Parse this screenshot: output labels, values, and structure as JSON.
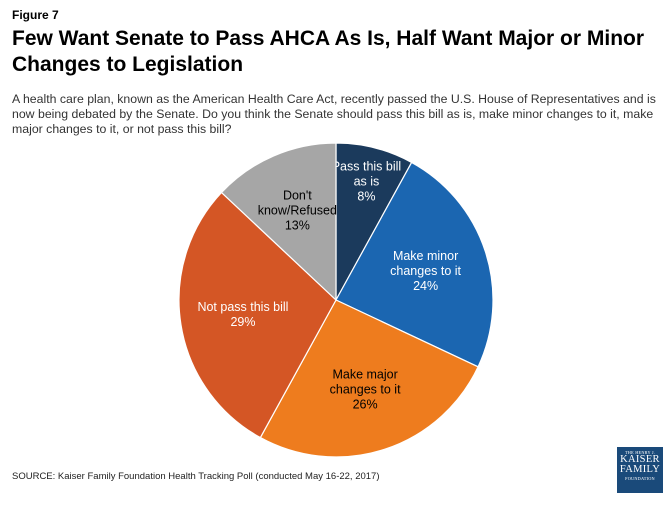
{
  "figure_label": "Figure 7",
  "title": "Few Want Senate to Pass AHCA As Is, Half Want Major or Minor Changes to Legislation",
  "question": "A health care plan, known as the American Health Care Act, recently passed the U.S. House of Representatives and is now being debated by the Senate. Do you think the Senate should pass this bill as is, make minor changes to it, make major changes to it, or not pass this bill?",
  "source": "SOURCE: Kaiser Family Foundation Health Tracking Poll (conducted May 16-22, 2017)",
  "logo": {
    "top": "THE HENRY J.",
    "line1": "KAISER",
    "line2": "FAMILY",
    "bottom": "FOUNDATION"
  },
  "chart_data": {
    "type": "pie",
    "start": "12 o'clock, clockwise",
    "slices": [
      {
        "label_lines": [
          "Pass this bill",
          "as is",
          "8%"
        ],
        "value": 8,
        "color": "#1b3a5c"
      },
      {
        "label_lines": [
          "Make minor",
          "changes to it",
          "24%"
        ],
        "value": 24,
        "color": "#1b66b1"
      },
      {
        "label_lines": [
          "Make major",
          "changes to it",
          "26%"
        ],
        "value": 26,
        "color": "#ee7c1e"
      },
      {
        "label_lines": [
          "Not pass this bill",
          "29%"
        ],
        "value": 29,
        "color": "#d45625"
      },
      {
        "label_lines": [
          "Don't",
          "know/Refused",
          "13%"
        ],
        "value": 13,
        "color": "#a6a6a6"
      }
    ]
  }
}
